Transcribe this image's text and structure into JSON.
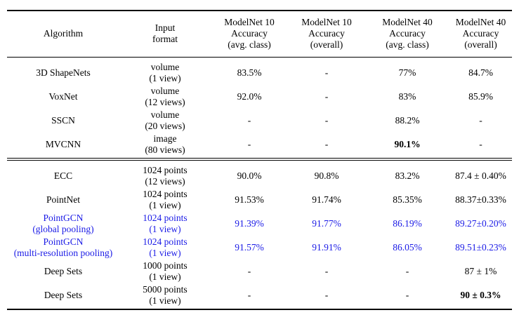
{
  "headers": [
    [
      "Algorithm"
    ],
    [
      "Input",
      "format"
    ],
    [
      "ModelNet 10",
      "Accuracy",
      "(avg. class)"
    ],
    [
      "ModelNet 10",
      "Accuracy",
      "(overall)"
    ],
    [
      "ModelNet 40",
      "Accuracy",
      "(avg. class)"
    ],
    [
      "ModelNet 40",
      "Accuracy",
      "(overall)"
    ]
  ],
  "group1": [
    {
      "algorithm": [
        "3D ShapeNets"
      ],
      "input": [
        "volume",
        "(1 view)"
      ],
      "mn10_avg": "83.5%",
      "mn10_overall": "-",
      "mn40_avg": "77%",
      "mn40_overall": "84.7%"
    },
    {
      "algorithm": [
        "VoxNet"
      ],
      "input": [
        "volume",
        "(12 views)"
      ],
      "mn10_avg": "92.0%",
      "mn10_overall": "-",
      "mn40_avg": "83%",
      "mn40_overall": "85.9%"
    },
    {
      "algorithm": [
        "SSCN"
      ],
      "input": [
        "volume",
        "(20 views)"
      ],
      "mn10_avg": "-",
      "mn10_overall": "-",
      "mn40_avg": "88.2%",
      "mn40_overall": "-"
    },
    {
      "algorithm": [
        "MVCNN"
      ],
      "input": [
        "image",
        "(80 views)"
      ],
      "mn10_avg": "-",
      "mn10_overall": "-",
      "mn40_avg": "90.1%",
      "mn40_overall": "-",
      "bold": [
        "mn40_avg"
      ]
    }
  ],
  "group2": [
    {
      "algorithm": [
        "ECC"
      ],
      "input": [
        "1024 points",
        "(12 views)"
      ],
      "mn10_avg": "90.0%",
      "mn10_overall": "90.8%",
      "mn40_avg": "83.2%",
      "mn40_overall": "87.4 ± 0.40%"
    },
    {
      "algorithm": [
        "PointNet"
      ],
      "input": [
        "1024 points",
        "(1 view)"
      ],
      "mn10_avg": "91.53%",
      "mn10_overall": "91.74%",
      "mn40_avg": "85.35%",
      "mn40_overall": "88.37±0.33%"
    },
    {
      "algorithm": [
        "PointGCN",
        "(global pooling)"
      ],
      "input": [
        "1024 points",
        "(1 view)"
      ],
      "mn10_avg": "91.39%",
      "mn10_overall": "91.77%",
      "mn40_avg": "86.19%",
      "mn40_overall": "89.27±0.20%",
      "highlight": true
    },
    {
      "algorithm": [
        "PointGCN",
        "(multi-resolution pooling)"
      ],
      "input": [
        "1024 points",
        "(1 view)"
      ],
      "mn10_avg": "91.57%",
      "mn10_overall": "91.91%",
      "mn40_avg": "86.05%",
      "mn40_overall": "89.51±0.23%",
      "highlight": true
    },
    {
      "algorithm": [
        "Deep Sets"
      ],
      "input": [
        "1000 points",
        "(1 view)"
      ],
      "mn10_avg": "-",
      "mn10_overall": "-",
      "mn40_avg": "-",
      "mn40_overall": "87 ± 1%"
    },
    {
      "algorithm": [
        "Deep Sets"
      ],
      "input": [
        "5000 points",
        "(1 view)"
      ],
      "mn10_avg": "-",
      "mn10_overall": "-",
      "mn40_avg": "-",
      "mn40_overall": "90 ± 0.3%",
      "bold": [
        "mn40_overall"
      ]
    }
  ],
  "colors": {
    "highlight": "#1a1ae6",
    "text": "#000000"
  }
}
